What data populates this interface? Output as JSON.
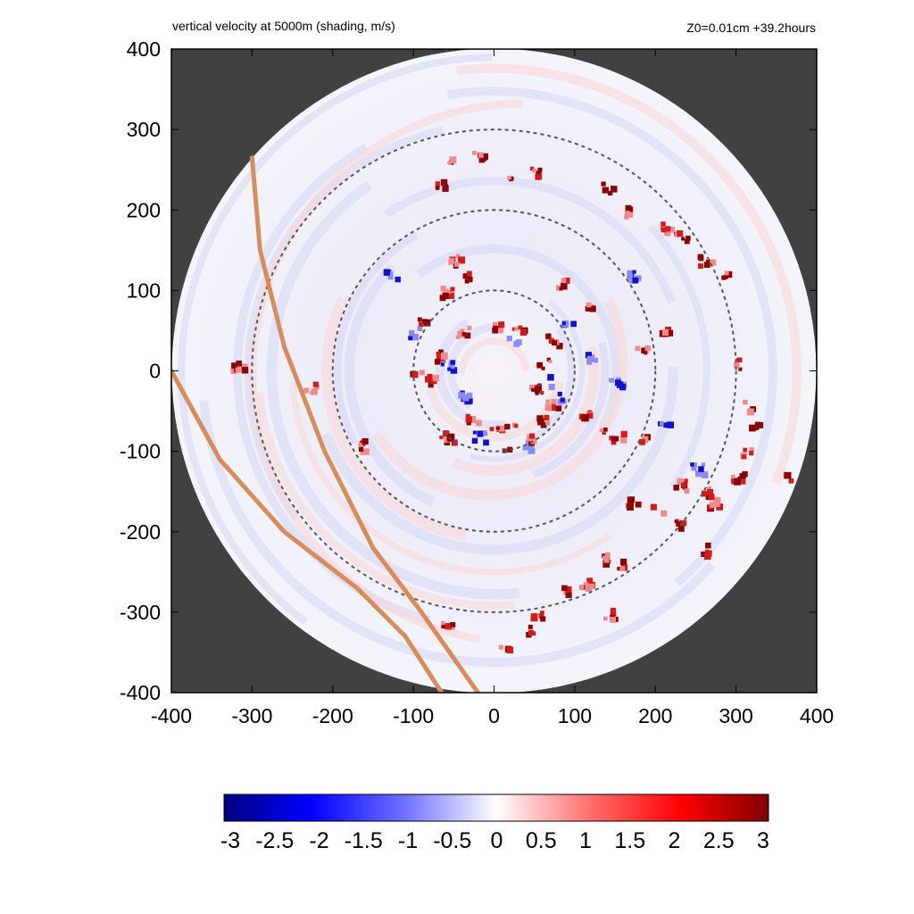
{
  "chart_data": {
    "type": "heatmap",
    "title": "vertical velocity at 5000m (shading, m/s)",
    "subtitle": "Z0=0.01cm  +39.2hours",
    "xlabel": "",
    "ylabel": "",
    "xlim": [
      -400,
      400
    ],
    "ylim": [
      -400,
      400
    ],
    "x_ticks": [
      "-400",
      "-300",
      "-200",
      "-100",
      "0",
      "100",
      "200",
      "300",
      "400"
    ],
    "y_ticks": [
      "400",
      "300",
      "200",
      "100",
      "0",
      "-100",
      "-200",
      "-300",
      "-400"
    ],
    "domain_radius": 400,
    "range_rings": [
      100,
      200,
      300
    ],
    "colorbar": {
      "min": -3,
      "max": 3,
      "tick_labels": [
        "-3",
        "-2.5",
        "-2",
        "-1.5",
        "-1",
        "-0.5",
        "0",
        "0.5",
        "1",
        "1.5",
        "2",
        "2.5",
        "3"
      ]
    },
    "track_lines": [
      [
        [
          -300,
          265
        ],
        [
          -290,
          150
        ],
        [
          -260,
          30
        ],
        [
          -210,
          -100
        ],
        [
          -150,
          -220
        ],
        [
          -90,
          -300
        ],
        [
          -20,
          -400
        ]
      ],
      [
        [
          -400,
          0
        ],
        [
          -340,
          -110
        ],
        [
          -260,
          -200
        ],
        [
          -170,
          -270
        ],
        [
          -110,
          -330
        ],
        [
          -65,
          -400
        ]
      ]
    ],
    "updraft_clusters": [
      [
        -60,
        260
      ],
      [
        -70,
        235
      ],
      [
        -20,
        270
      ],
      [
        50,
        250
      ],
      [
        20,
        240
      ],
      [
        140,
        230
      ],
      [
        160,
        200
      ],
      [
        210,
        180
      ],
      [
        230,
        170
      ],
      [
        260,
        140
      ],
      [
        -50,
        140
      ],
      [
        -60,
        100
      ],
      [
        -40,
        120
      ],
      [
        80,
        110
      ],
      [
        120,
        80
      ],
      [
        -90,
        60
      ],
      [
        -40,
        50
      ],
      [
        0,
        60
      ],
      [
        30,
        55
      ],
      [
        70,
        40
      ],
      [
        60,
        10
      ],
      [
        50,
        -20
      ],
      [
        70,
        -40
      ],
      [
        60,
        -60
      ],
      [
        0,
        -65
      ],
      [
        -30,
        -60
      ],
      [
        -60,
        -80
      ],
      [
        40,
        -80
      ],
      [
        20,
        -70
      ],
      [
        10,
        -90
      ],
      [
        -100,
        0
      ],
      [
        -80,
        -10
      ],
      [
        -70,
        20
      ],
      [
        110,
        -50
      ],
      [
        130,
        -70
      ],
      [
        150,
        -80
      ],
      [
        180,
        -80
      ],
      [
        280,
        120
      ],
      [
        300,
        10
      ],
      [
        310,
        -40
      ],
      [
        320,
        -70
      ],
      [
        310,
        -100
      ],
      [
        300,
        -130
      ],
      [
        270,
        -160
      ],
      [
        230,
        -190
      ],
      [
        200,
        -170
      ],
      [
        170,
        -160
      ],
      [
        140,
        -230
      ],
      [
        160,
        -240
      ],
      [
        110,
        -260
      ],
      [
        90,
        -270
      ],
      [
        50,
        -300
      ],
      [
        40,
        -320
      ],
      [
        10,
        -340
      ],
      [
        -60,
        -310
      ],
      [
        -320,
        10
      ],
      [
        -230,
        -20
      ],
      [
        -170,
        -90
      ],
      [
        180,
        30
      ],
      [
        210,
        50
      ],
      [
        230,
        -140
      ],
      [
        260,
        -150
      ],
      [
        360,
        -130
      ],
      [
        260,
        -220
      ],
      [
        140,
        -300
      ]
    ],
    "downdraft_clusters": [
      [
        -100,
        50
      ],
      [
        -60,
        10
      ],
      [
        20,
        40
      ],
      [
        60,
        -10
      ],
      [
        80,
        -30
      ],
      [
        40,
        -90
      ],
      [
        -20,
        -80
      ],
      [
        120,
        20
      ],
      [
        150,
        -10
      ],
      [
        -40,
        -30
      ],
      [
        90,
        60
      ],
      [
        170,
        120
      ],
      [
        210,
        -60
      ],
      [
        250,
        -120
      ],
      [
        -130,
        120
      ]
    ]
  }
}
